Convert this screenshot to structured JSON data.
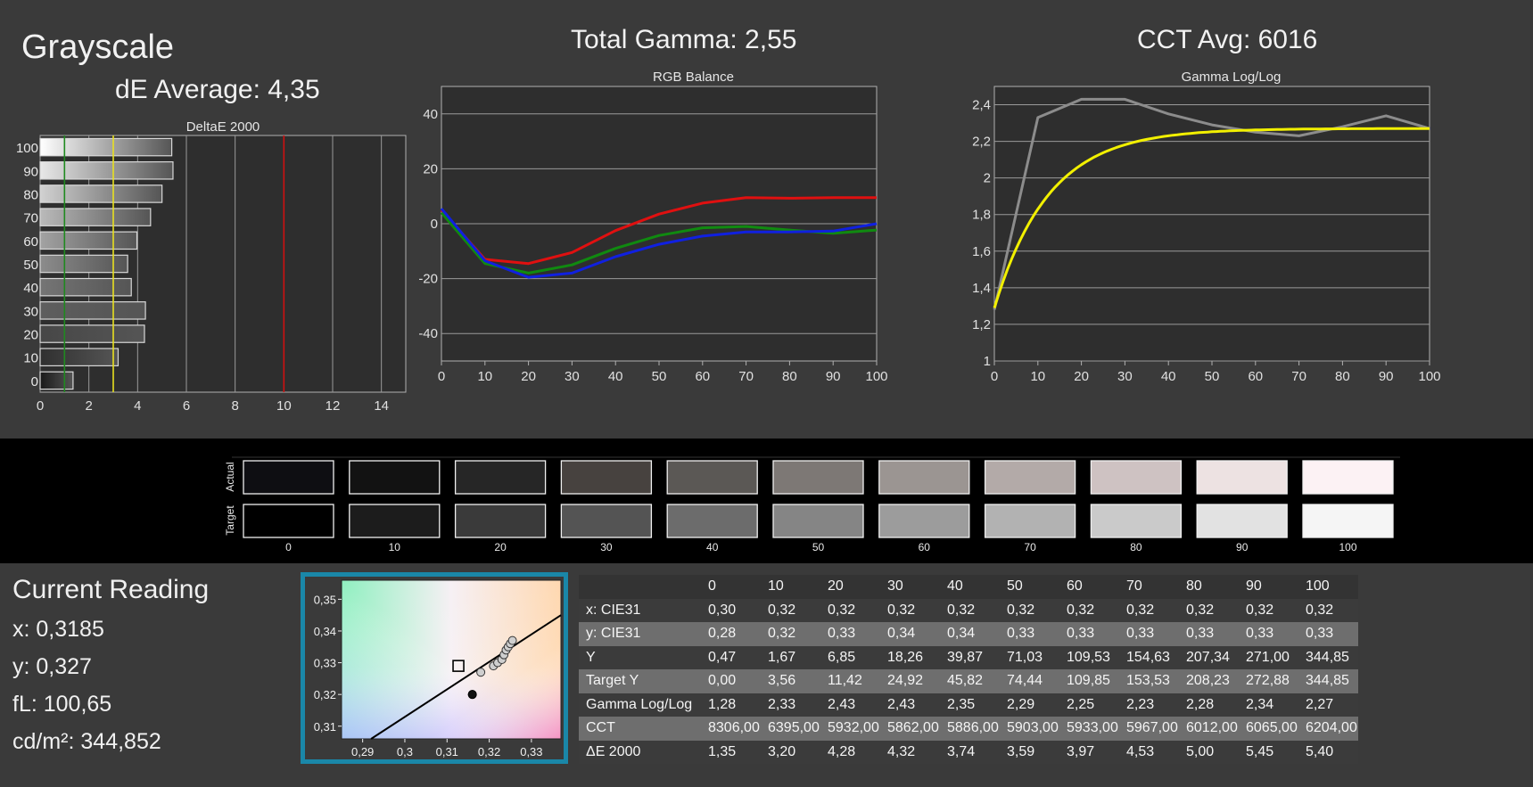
{
  "header": {
    "title": "Grayscale",
    "de_average": "dE Average: 4,35",
    "total_gamma": "Total Gamma: 2,55",
    "cct_avg": "CCT Avg: 6016"
  },
  "chart_data": [
    {
      "type": "bar",
      "title": "DeltaE 2000",
      "orientation": "horizontal",
      "categories": [
        "100",
        "90",
        "80",
        "70",
        "60",
        "50",
        "40",
        "30",
        "20",
        "10",
        "0"
      ],
      "values": [
        5.4,
        5.45,
        5.0,
        4.53,
        3.97,
        3.59,
        3.74,
        4.32,
        4.28,
        3.2,
        1.35
      ],
      "xlim": [
        0,
        15
      ],
      "xticks": [
        "0",
        "2",
        "4",
        "6",
        "8",
        "10",
        "12",
        "14"
      ],
      "reference_lines": [
        {
          "value": 1,
          "color": "#1f8a1f"
        },
        {
          "value": 3,
          "color": "#e8e020"
        },
        {
          "value": 10,
          "color": "#d01010"
        }
      ],
      "grid": true
    },
    {
      "type": "line",
      "title": "RGB Balance",
      "x": [
        0,
        10,
        20,
        30,
        40,
        50,
        60,
        70,
        80,
        90,
        100
      ],
      "xticks": [
        "0",
        "10",
        "20",
        "30",
        "40",
        "50",
        "60",
        "70",
        "80",
        "90",
        "100"
      ],
      "yticks": [
        "40",
        "20",
        "0",
        "-20",
        "-40"
      ],
      "ylim": [
        -50,
        50
      ],
      "series": [
        {
          "color": "#e01010",
          "values": [
            5,
            -13,
            -14.5,
            -10.5,
            -2.5,
            3.5,
            7.5,
            9.5,
            9.3,
            9.5,
            9.5
          ]
        },
        {
          "color": "#108a10",
          "values": [
            4,
            -14.5,
            -18,
            -15,
            -9,
            -4.3,
            -1.5,
            -1,
            -2.3,
            -3.5,
            -2.3
          ]
        },
        {
          "color": "#1020e0",
          "values": [
            5.5,
            -13.5,
            -19.5,
            -18,
            -12,
            -7.5,
            -4.5,
            -3,
            -3,
            -2.7,
            0
          ]
        }
      ],
      "grid": true
    },
    {
      "type": "line",
      "title": "Gamma Log/Log",
      "x": [
        0,
        10,
        20,
        30,
        40,
        50,
        60,
        70,
        80,
        90,
        100
      ],
      "xticks": [
        "0",
        "10",
        "20",
        "30",
        "40",
        "50",
        "60",
        "70",
        "80",
        "90",
        "100"
      ],
      "yticks": [
        "2,4",
        "2,2",
        "2",
        "1,8",
        "1,6",
        "1,4",
        "1,2",
        "1"
      ],
      "ylim": [
        1,
        2.5
      ],
      "series": [
        {
          "color": "#8c8c8c",
          "values": [
            1.28,
            2.33,
            2.43,
            2.43,
            2.35,
            2.29,
            2.25,
            2.23,
            2.28,
            2.34,
            2.27
          ]
        },
        {
          "color": "#f2f000",
          "values": [
            1.29,
            2.0,
            2.13,
            2.18,
            2.2,
            2.22,
            2.24,
            2.25,
            2.26,
            2.27,
            2.27
          ]
        }
      ],
      "grid": true
    },
    {
      "type": "scatter",
      "title": "",
      "xlim": [
        0.285,
        0.337
      ],
      "ylim": [
        0.306,
        0.356
      ],
      "xticks": [
        "0,29",
        "0,3",
        "0,31",
        "0,32",
        "0,33"
      ],
      "yticks": [
        "0,35",
        "0,34",
        "0,33",
        "0,32",
        "0,31"
      ],
      "target": {
        "x": 0.3127,
        "y": 0.329
      },
      "current": {
        "x": 0.3185,
        "y": 0.327
      },
      "points": [
        {
          "x": 0.316,
          "y": 0.32
        },
        {
          "x": 0.318,
          "y": 0.327
        },
        {
          "x": 0.321,
          "y": 0.329
        },
        {
          "x": 0.322,
          "y": 0.33
        },
        {
          "x": 0.323,
          "y": 0.331
        },
        {
          "x": 0.3235,
          "y": 0.3325
        },
        {
          "x": 0.324,
          "y": 0.334
        },
        {
          "x": 0.3245,
          "y": 0.335
        },
        {
          "x": 0.325,
          "y": 0.336
        },
        {
          "x": 0.3255,
          "y": 0.337
        }
      ],
      "locus": [
        [
          0.292,
          0.306
        ],
        [
          0.337,
          0.345
        ]
      ]
    },
    {
      "type": "table",
      "columns": [
        "0",
        "10",
        "20",
        "30",
        "40",
        "50",
        "60",
        "70",
        "80",
        "90",
        "100"
      ],
      "rows": [
        {
          "label": "x: CIE31",
          "values": [
            "0,30",
            "0,32",
            "0,32",
            "0,32",
            "0,32",
            "0,32",
            "0,32",
            "0,32",
            "0,32",
            "0,32",
            "0,32"
          ]
        },
        {
          "label": "y: CIE31",
          "values": [
            "0,28",
            "0,32",
            "0,33",
            "0,34",
            "0,34",
            "0,33",
            "0,33",
            "0,33",
            "0,33",
            "0,33",
            "0,33"
          ]
        },
        {
          "label": "Y",
          "values": [
            "0,47",
            "1,67",
            "6,85",
            "18,26",
            "39,87",
            "71,03",
            "109,53",
            "154,63",
            "207,34",
            "271,00",
            "344,85"
          ]
        },
        {
          "label": "Target Y",
          "values": [
            "0,00",
            "3,56",
            "11,42",
            "24,92",
            "45,82",
            "74,44",
            "109,85",
            "153,53",
            "208,23",
            "272,88",
            "344,85"
          ]
        },
        {
          "label": "Gamma Log/Log",
          "values": [
            "1,28",
            "2,33",
            "2,43",
            "2,43",
            "2,35",
            "2,29",
            "2,25",
            "2,23",
            "2,28",
            "2,34",
            "2,27"
          ]
        },
        {
          "label": "CCT",
          "values": [
            "8306,00",
            "6395,00",
            "5932,00",
            "5862,00",
            "5886,00",
            "5903,00",
            "5933,00",
            "5967,00",
            "6012,00",
            "6065,00",
            "6204,00"
          ]
        },
        {
          "label": "ΔE 2000",
          "values": [
            "1,35",
            "3,20",
            "4,28",
            "4,32",
            "3,74",
            "3,59",
            "3,97",
            "4,53",
            "5,00",
            "5,45",
            "5,40"
          ]
        }
      ]
    }
  ],
  "swatches": {
    "row_labels": [
      "Actual",
      "Target"
    ],
    "levels": [
      "0",
      "10",
      "20",
      "30",
      "40",
      "50",
      "60",
      "70",
      "80",
      "90",
      "100"
    ],
    "actual_colors": [
      "#0e0e12",
      "#121212",
      "#262626",
      "#47423f",
      "#5b5855",
      "#7d7875",
      "#9b9592",
      "#b3aaa8",
      "#cec2c2",
      "#ede2e2",
      "#fcf2f4"
    ],
    "target_colors": [
      "#000000",
      "#1c1c1c",
      "#3a3a3a",
      "#545454",
      "#6c6c6c",
      "#858585",
      "#9c9c9c",
      "#b2b2b2",
      "#cacaca",
      "#e2e2e2",
      "#f5f5f5"
    ]
  },
  "current_reading": {
    "title": "Current Reading",
    "x": "x: 0,3185",
    "y": "y: 0,327",
    "fl": "fL: 100,65",
    "cdm2": "cd/m²: 344,852"
  }
}
